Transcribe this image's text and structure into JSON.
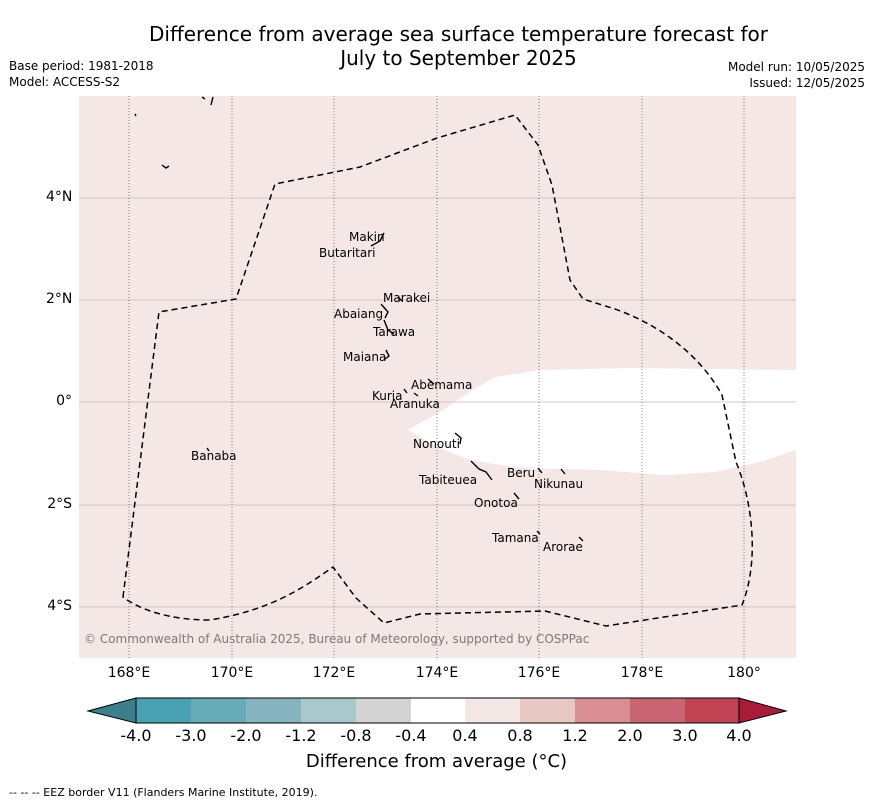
{
  "title_line1": "Difference from average sea surface temperature forecast for",
  "title_line2": "July to September 2025",
  "base_period": "Base period: 1981-2018",
  "model": "Model: ACCESS-S2",
  "model_run": "Model run: 10/05/2025",
  "issued": "Issued: 12/05/2025",
  "lat_labels": [
    "4°N",
    "2°N",
    "0°",
    "2°S",
    "4°S"
  ],
  "lon_labels": [
    "168°E",
    "170°E",
    "172°E",
    "174°E",
    "176°E",
    "178°E",
    "180°"
  ],
  "places": {
    "makin": "Makin",
    "butaritari": "Butaritari",
    "marakei": "Marakei",
    "abaiang": "Abaiang",
    "tarawa": "Tarawa",
    "maiana": "Maiana",
    "abemama": "Abemama",
    "kuria": "Kuria",
    "aranuka": "Aranuka",
    "nonouti": "Nonouti",
    "banaba": "Banaba",
    "beru": "Beru",
    "nikunau": "Nikunau",
    "tabiteuea": "Tabiteuea",
    "onotoa": "Onotoa",
    "tamana": "Tamana",
    "arorae": "Arorae"
  },
  "copyright": "© Commonwealth of Australia 2025, Bureau of Meteorology, supported by COSPPac",
  "colorbar": {
    "ticks": [
      "-4.0",
      "-3.0",
      "-2.0",
      "-1.2",
      "-0.8",
      "-0.4",
      "0.4",
      "0.8",
      "1.2",
      "2.0",
      "3.0",
      "4.0"
    ],
    "colors": [
      "#3b7f8c",
      "#4aa1b1",
      "#67aab8",
      "#86b4be",
      "#a8c8cc",
      "#d3d3d3",
      "#ffffff",
      "#f3e8e6",
      "#e8c8c3",
      "#d98e96",
      "#c96472",
      "#c04454",
      "#a81c3a"
    ],
    "title": "Difference from average (°C)"
  },
  "footnote": "--  --  -- EEZ border V11 (Flanders Marine Institute, 2019).",
  "map_colors": {
    "ocean_anomaly": "#f5e7e6",
    "neutral": "#ffffff",
    "grid": "#c8b8b8"
  }
}
